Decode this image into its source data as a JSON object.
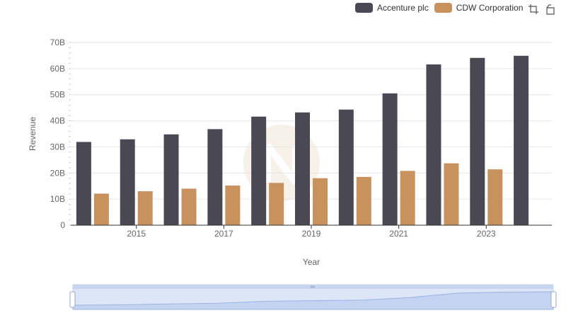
{
  "chart_data": {
    "type": "bar",
    "title": "",
    "xlabel": "Year",
    "ylabel": "Revenue",
    "x": [
      2014,
      2015,
      2016,
      2017,
      2018,
      2019,
      2020,
      2021,
      2022,
      2023,
      2024
    ],
    "x_tick_labels": [
      "2015",
      "2017",
      "2019",
      "2021",
      "2023"
    ],
    "y_tick_labels": [
      "0",
      "10B",
      "20B",
      "30B",
      "40B",
      "50B",
      "60B",
      "70B"
    ],
    "ylim": [
      0,
      70000000000
    ],
    "grid": true,
    "legend_position": "top-right",
    "series": [
      {
        "name": "Accenture plc",
        "color": "#4a4953",
        "values": [
          31900000000,
          32900000000,
          34800000000,
          36800000000,
          41600000000,
          43200000000,
          44300000000,
          50500000000,
          61600000000,
          64100000000,
          64900000000
        ]
      },
      {
        "name": "CDW Corporation",
        "color": "#c8925e",
        "values": [
          12100000000,
          13000000000,
          14000000000,
          15200000000,
          16200000000,
          18000000000,
          18500000000,
          20800000000,
          23700000000,
          21400000000,
          null
        ]
      }
    ]
  },
  "toolbox": {
    "icons": [
      "zoom-area-icon",
      "zoom-reset-icon"
    ]
  },
  "datazoom": {
    "start": 0,
    "end": 100
  }
}
